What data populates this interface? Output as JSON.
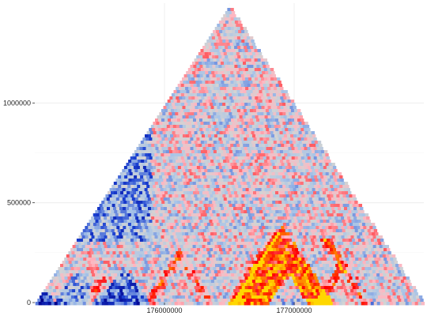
{
  "chart_data": {
    "type": "heatmap",
    "title": "",
    "xlabel": "",
    "ylabel": "",
    "x_ticks": [
      176000000,
      177000000
    ],
    "x_tick_labels": [
      "176000000",
      "177000000"
    ],
    "y_ticks": [
      0,
      500000,
      1000000
    ],
    "y_tick_labels": [
      "0",
      "500000",
      "1000000"
    ],
    "xlim": [
      175000000,
      178000000
    ],
    "ylim": [
      0,
      1500000
    ],
    "grid": true,
    "legend": "none",
    "colors": {
      "background": "#ffffff",
      "neutral": "#d3d3d3",
      "enriched_low": "#ffb6c1",
      "enriched_mid": "#ff0000",
      "enriched_high": "#ffd700",
      "depleted_low": "#a8c4e8",
      "depleted_mid": "#1a3fd0",
      "depleted_high": "#00008b"
    },
    "features": {
      "domains": [
        {
          "start": 175000000,
          "end": 175160000,
          "value": -0.7
        },
        {
          "start": 175160000,
          "end": 175500000,
          "value": -0.4
        },
        {
          "start": 175500000,
          "end": 175880000,
          "value": -0.6
        },
        {
          "start": 176520000,
          "end": 177300000,
          "value": 0.85
        },
        {
          "start": 176820000,
          "end": 177100000,
          "value": -1.0
        },
        {
          "start": 177220000,
          "end": 177600000,
          "value": -0.55
        },
        {
          "start": 177150000,
          "end": 177550000,
          "value": 0.6
        }
      ],
      "stripes": [
        {
          "position": 176520000,
          "direction": "right",
          "length": 700000,
          "value": 1.0
        },
        {
          "position": 177560000,
          "direction": "left",
          "length": 650000,
          "value": 0.9
        },
        {
          "position": 175880000,
          "direction": "right",
          "length": 500000,
          "value": 0.7
        },
        {
          "position": 175420000,
          "direction": "right",
          "length": 250000,
          "value": 0.6
        },
        {
          "position": 176350000,
          "direction": "left",
          "length": 350000,
          "value": 0.5
        }
      ]
    }
  }
}
